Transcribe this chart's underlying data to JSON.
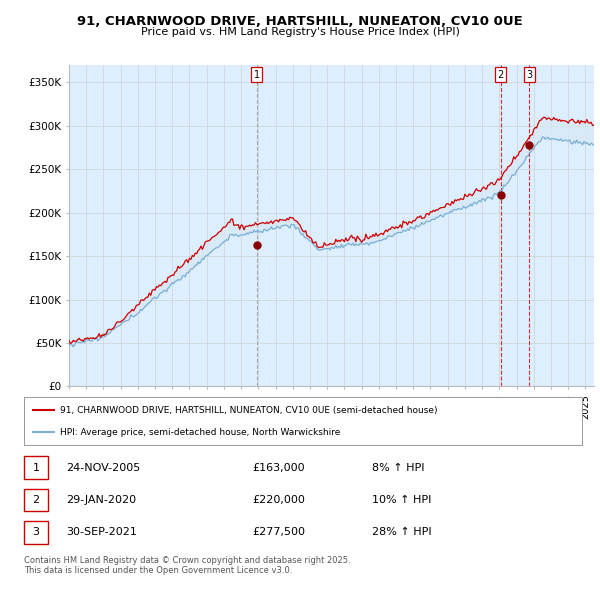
{
  "title_line1": "91, CHARNWOOD DRIVE, HARTSHILL, NUNEATON, CV10 0UE",
  "title_line2": "Price paid vs. HM Land Registry's House Price Index (HPI)",
  "ylabel_ticks": [
    "£0",
    "£50K",
    "£100K",
    "£150K",
    "£200K",
    "£250K",
    "£300K",
    "£350K"
  ],
  "ytick_values": [
    0,
    50000,
    100000,
    150000,
    200000,
    250000,
    300000,
    350000
  ],
  "ylim": [
    0,
    370000
  ],
  "xlim_start": 1995.0,
  "xlim_end": 2025.5,
  "red_color": "#cc0000",
  "blue_color": "#7bafd4",
  "fill_color": "#d6e8f5",
  "chart_bg": "#ddeeff",
  "marker_color": "#880000",
  "sale_dates": [
    2005.917,
    2020.083,
    2021.75
  ],
  "sale_prices": [
    163000,
    220000,
    277500
  ],
  "sale_labels": [
    "1",
    "2",
    "3"
  ],
  "sale_date_strs": [
    "24-NOV-2005",
    "29-JAN-2020",
    "30-SEP-2021"
  ],
  "sale_price_strs": [
    "£163,000",
    "£220,000",
    "£277,500"
  ],
  "sale_hpi_strs": [
    "8% ↑ HPI",
    "10% ↑ HPI",
    "28% ↑ HPI"
  ],
  "legend_red_label": "91, CHARNWOOD DRIVE, HARTSHILL, NUNEATON, CV10 0UE (semi-detached house)",
  "legend_blue_label": "HPI: Average price, semi-detached house, North Warwickshire",
  "footnote": "Contains HM Land Registry data © Crown copyright and database right 2025.\nThis data is licensed under the Open Government Licence v3.0.",
  "background_color": "#ffffff",
  "grid_color": "#cccccc",
  "vline1_color": "#999999",
  "vline2_color": "#cc0000"
}
